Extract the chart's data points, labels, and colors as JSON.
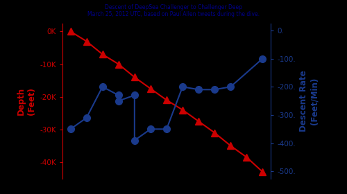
{
  "title": "Descent of DeepSea Challenger to Challenger Deep\nMarch 25, 2012 UTC, based on Paul Allen tweets during the dive.",
  "title_color": "#00008b",
  "bg_color": "#000000",
  "plot_bg_color": "#000000",
  "depth_x": [
    0,
    1,
    2,
    3,
    4,
    5,
    6,
    7,
    8,
    9,
    10,
    11,
    12
  ],
  "depth_y": [
    0,
    -3000,
    -7000,
    -10000,
    -14000,
    -17500,
    -21000,
    -24000,
    -27500,
    -31000,
    -35000,
    -38500,
    -43000
  ],
  "rate_x": [
    0,
    1,
    2,
    3,
    3,
    4,
    4,
    5,
    6,
    7,
    8,
    9,
    10,
    12
  ],
  "rate_y": [
    -350,
    -310,
    -200,
    -230,
    -250,
    -230,
    -390,
    -350,
    -350,
    -200,
    -210,
    -210,
    -200,
    -100
  ],
  "depth_color": "#cc0000",
  "rate_color": "#1a3a8c",
  "left_ylabel": "Depth\n(Feet)",
  "right_ylabel": "Descent Rate\n(Feet/Min)",
  "ylim_left": [
    -45000,
    2500
  ],
  "ylim_right": [
    -525,
    25
  ],
  "left_yticks": [
    0,
    -10000,
    -20000,
    -30000,
    -40000
  ],
  "left_yticklabels": [
    "0K",
    "-10K",
    "-20K",
    "-30K",
    "-40K"
  ],
  "right_yticks": [
    0,
    -100,
    -200,
    -300,
    -400,
    -500
  ],
  "right_yticklabels": [
    "0.",
    "-100.",
    "-200.",
    "-300.",
    "-400.",
    "-500."
  ]
}
